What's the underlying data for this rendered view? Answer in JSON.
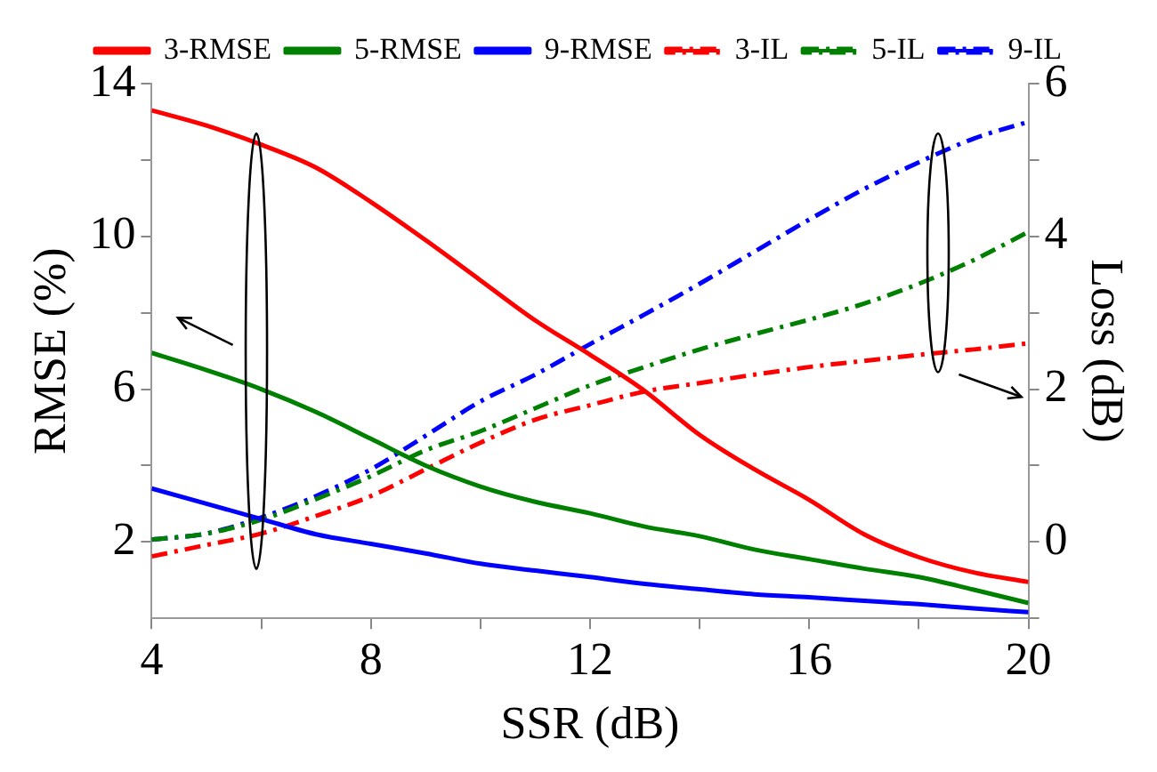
{
  "chart_data": {
    "type": "line",
    "xlabel": "SSR (dB)",
    "ylabel": "RMSE (%)",
    "y2label": "Loss (dB)",
    "x": [
      4,
      5,
      6,
      7,
      8,
      9,
      10,
      11,
      12,
      13,
      14,
      15,
      16,
      17,
      18,
      19,
      20
    ],
    "series": [
      {
        "name": "3-RMSE",
        "color": "#ff0000",
        "line_style": "solid",
        "values": [
          13.3,
          12.9,
          12.4,
          11.8,
          10.9,
          9.9,
          8.85,
          7.8,
          6.9,
          5.95,
          4.8,
          3.9,
          3.1,
          2.2,
          1.6,
          1.2,
          0.95
        ]
      },
      {
        "name": "5-RMSE",
        "color": "#008000",
        "line_style": "solid",
        "values": [
          6.95,
          6.5,
          6.0,
          5.4,
          4.7,
          4.0,
          3.45,
          3.05,
          2.75,
          2.4,
          2.15,
          1.8,
          1.55,
          1.3,
          1.08,
          0.75,
          0.4
        ]
      },
      {
        "name": "9-RMSE",
        "color": "#0000ff",
        "line_style": "solid",
        "values": [
          3.4,
          3.0,
          2.6,
          2.2,
          1.95,
          1.7,
          1.43,
          1.25,
          1.08,
          0.9,
          0.76,
          0.63,
          0.55,
          0.46,
          0.37,
          0.26,
          0.16
        ]
      },
      {
        "name": "3-IL",
        "color": "#ff0000",
        "line_style": "dashed",
        "axis": "y2",
        "values": [
          -0.19,
          -0.04,
          0.11,
          0.34,
          0.6,
          0.95,
          1.3,
          1.6,
          1.79,
          1.97,
          2.08,
          2.19,
          2.29,
          2.37,
          2.45,
          2.52,
          2.6
        ]
      },
      {
        "name": "5-IL",
        "color": "#008000",
        "line_style": "dashed",
        "axis": "y2",
        "values": [
          0.03,
          0.11,
          0.29,
          0.56,
          0.86,
          1.2,
          1.45,
          1.75,
          2.05,
          2.29,
          2.52,
          2.72,
          2.91,
          3.12,
          3.38,
          3.69,
          4.06
        ]
      },
      {
        "name": "9-IL",
        "color": "#0000ff",
        "line_style": "dashed",
        "axis": "y2",
        "values": [
          0.03,
          0.11,
          0.32,
          0.6,
          0.95,
          1.39,
          1.84,
          2.19,
          2.59,
          2.98,
          3.38,
          3.8,
          4.22,
          4.62,
          4.97,
          5.28,
          5.5
        ]
      }
    ],
    "xlim": [
      4,
      20
    ],
    "xticks": [
      4,
      {
        "value": 6,
        "label": null
      },
      8,
      {
        "value": 10,
        "label": null
      },
      12,
      {
        "value": 14,
        "label": null
      },
      16,
      {
        "value": 18,
        "label": null
      },
      20
    ],
    "ylim": [
      0,
      14
    ],
    "yticks": [
      2,
      {
        "value": 4,
        "label": null
      },
      6,
      {
        "value": 8,
        "label": null
      },
      10,
      {
        "value": 12,
        "label": null
      },
      14
    ],
    "y2lim": [
      -1,
      6
    ],
    "y2ticks": [
      {
        "value": -1,
        "label": null
      },
      0,
      {
        "value": 1,
        "label": null
      },
      2,
      {
        "value": 3,
        "label": null
      },
      4,
      {
        "value": 5,
        "label": null
      },
      6
    ],
    "grid": false,
    "legend": "top",
    "marker": "none"
  }
}
